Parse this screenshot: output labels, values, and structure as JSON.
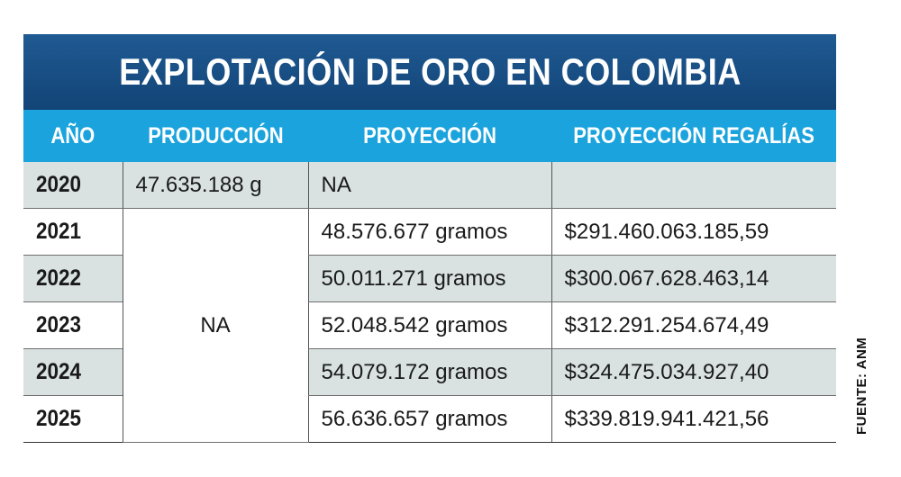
{
  "title": "EXPLOTACIÓN DE ORO EN COLOMBIA",
  "headers": [
    "AÑO",
    "PRODUCCIÓN",
    "PROYECCIÓN",
    "PROYECCIÓN REGALÍAS"
  ],
  "rows": [
    {
      "year": "2020",
      "produccion": "47.635.188 g",
      "proyeccion": "NA",
      "regalias": ""
    },
    {
      "year": "2021",
      "proyeccion": "48.576.677 gramos",
      "regalias": "$291.460.063.185,59"
    },
    {
      "year": "2022",
      "proyeccion": "50.011.271 gramos",
      "regalias": "$300.067.628.463,14"
    },
    {
      "year": "2023",
      "proyeccion": "52.048.542 gramos",
      "regalias": "$312.291.254.674,49"
    },
    {
      "year": "2024",
      "proyeccion": "54.079.172 gramos",
      "regalias": "$324.475.034.927,40"
    },
    {
      "year": "2025",
      "proyeccion": "56.636.657 gramos",
      "regalias": "$339.819.941.421,56"
    }
  ],
  "produccion_merged": "NA",
  "source": "FUENTE: ANM",
  "colors": {
    "title_bg": "#174c80",
    "header_bg": "#1aa3dd",
    "shaded_row": "#d9e1e1"
  }
}
